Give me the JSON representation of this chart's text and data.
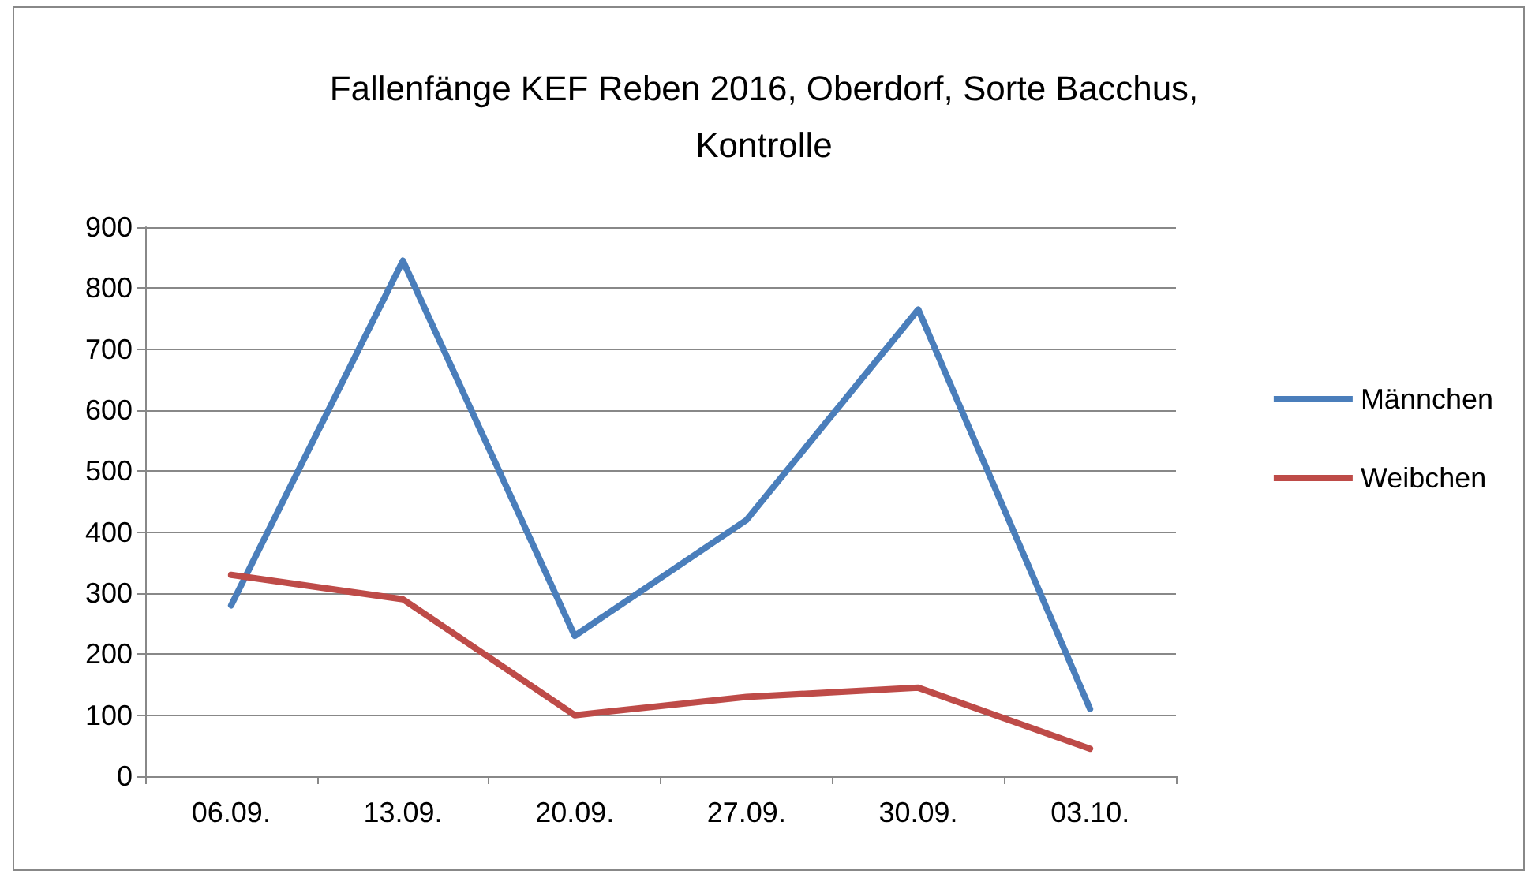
{
  "chart_data": {
    "type": "line",
    "title": "Fallenfänge KEF Reben 2016, Oberdorf, Sorte Bacchus,\nKontrolle",
    "categories": [
      "06.09.",
      "13.09.",
      "20.09.",
      "27.09.",
      "30.09.",
      "03.10."
    ],
    "series": [
      {
        "name": "Männchen",
        "color": "#4a7ebb",
        "values": [
          280,
          845,
          230,
          420,
          765,
          110
        ]
      },
      {
        "name": "Weibchen",
        "color": "#be4b48",
        "values": [
          330,
          290,
          100,
          130,
          145,
          45
        ]
      }
    ],
    "ylim": [
      0,
      900
    ],
    "yticks": [
      0,
      100,
      200,
      300,
      400,
      500,
      600,
      700,
      800,
      900
    ],
    "grid": "y",
    "legend": "right",
    "marker": "none",
    "line_style": "solid"
  }
}
